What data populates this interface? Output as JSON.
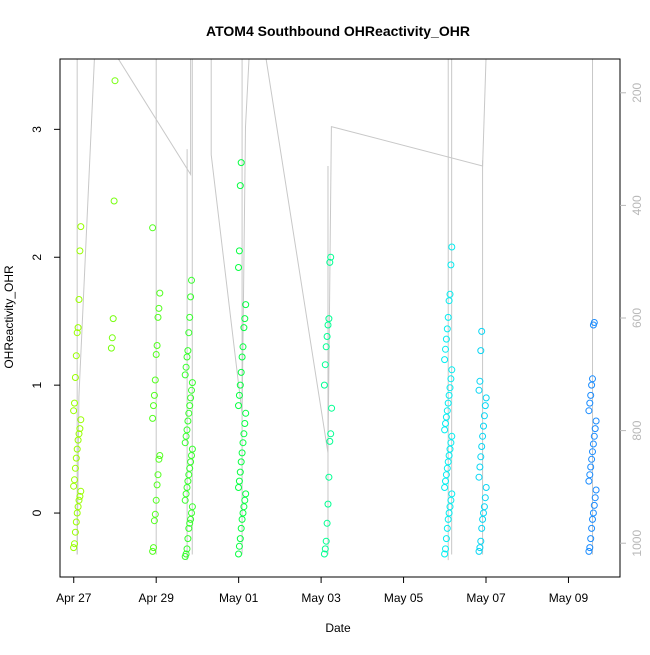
{
  "chart_data": {
    "type": "scatter",
    "title": "ATOM4 Southbound OHReactivity_OHR",
    "xlabel": "Date",
    "ylabel": "OHReactivity_OHR",
    "x_tick_labels": [
      "Apr 27",
      "Apr 29",
      "May 01",
      "May 03",
      "May 05",
      "May 07",
      "May 09"
    ],
    "x_tick_dates": [
      "2018-04-27",
      "2018-04-29",
      "2018-05-01",
      "2018-05-03",
      "2018-05-05",
      "2018-05-07",
      "2018-05-09"
    ],
    "xlim": [
      "2018-04-26T16:00",
      "2018-05-10T06:00"
    ],
    "ylim": [
      -0.5,
      3.55
    ],
    "y_ticks": [
      0,
      1,
      2,
      3
    ],
    "y2_ticks": [
      200,
      400,
      600,
      800,
      1000
    ],
    "y2lim": [
      1060,
      140
    ],
    "grid": false,
    "color_scale": "time: lime green to blue",
    "colors": {
      "points_start": "#99ff00",
      "points_mid": "#00ff44",
      "points_cyan": "#00ffee",
      "points_end": "#1a8cff",
      "line": "#c8c8c8",
      "axis": "#000000",
      "right_axis": "#b8b8b8"
    },
    "clusters": [
      {
        "date": "2018-04-27T02:00",
        "values": [
          -0.27,
          -0.24,
          -0.15,
          -0.07,
          0.0,
          0.05,
          0.1,
          0.13,
          0.17,
          0.21,
          0.26,
          0.35,
          0.43,
          0.5,
          0.57,
          0.62,
          0.66,
          0.73,
          0.8,
          0.86,
          1.06,
          1.23,
          1.41,
          1.45,
          1.67,
          2.05,
          2.24
        ]
      },
      {
        "date": "2018-04-28T00:00",
        "values": [
          1.29,
          1.37,
          1.52,
          2.44,
          3.38
        ]
      },
      {
        "date": "2018-04-29T00:00",
        "values": [
          -0.3,
          -0.27,
          -0.06,
          -0.01,
          0.1,
          0.22,
          0.3,
          0.42,
          0.45,
          0.74,
          0.84,
          0.92,
          1.04,
          1.24,
          1.31,
          1.53,
          1.6,
          1.72,
          2.23
        ]
      },
      {
        "date": "2018-04-29T19:00",
        "values": [
          -0.34,
          -0.32,
          -0.28,
          -0.2,
          -0.12,
          -0.08,
          -0.05,
          0.0,
          0.05,
          0.1,
          0.15,
          0.2,
          0.25,
          0.3,
          0.35,
          0.4,
          0.45,
          0.5,
          0.55,
          0.6,
          0.65,
          0.72,
          0.78,
          0.84,
          0.9,
          0.96,
          1.02,
          1.08,
          1.14,
          1.22,
          1.27,
          1.41,
          1.53,
          1.69,
          1.82
        ]
      },
      {
        "date": "2018-05-01T02:00",
        "values": [
          -0.32,
          -0.26,
          -0.2,
          -0.12,
          -0.05,
          0.0,
          0.05,
          0.1,
          0.15,
          0.2,
          0.25,
          0.32,
          0.4,
          0.47,
          0.55,
          0.62,
          0.7,
          0.78,
          0.84,
          0.92,
          1.0,
          1.1,
          1.22,
          1.3,
          1.45,
          1.52,
          1.63,
          1.92,
          2.05,
          2.56,
          2.74
        ]
      },
      {
        "date": "2018-05-03T04:00",
        "values": [
          -0.32,
          -0.28,
          -0.22,
          -0.08,
          0.07,
          0.28,
          0.56,
          0.62,
          0.82,
          1.0,
          1.16,
          1.3,
          1.38,
          1.47,
          1.52,
          1.96,
          2.0
        ]
      },
      {
        "date": "2018-05-06T02:00",
        "values": [
          -0.32,
          -0.28,
          -0.2,
          -0.12,
          -0.05,
          0.0,
          0.05,
          0.1,
          0.15,
          0.2,
          0.25,
          0.3,
          0.35,
          0.4,
          0.45,
          0.5,
          0.55,
          0.6,
          0.65,
          0.7,
          0.75,
          0.8,
          0.86,
          0.92,
          0.98,
          1.05,
          1.12,
          1.2,
          1.28,
          1.36,
          1.44,
          1.53,
          1.66,
          1.71,
          1.94,
          2.08
        ]
      },
      {
        "date": "2018-05-06T22:00",
        "values": [
          -0.3,
          -0.27,
          -0.22,
          -0.12,
          -0.05,
          0.0,
          0.05,
          0.12,
          0.2,
          0.28,
          0.36,
          0.44,
          0.52,
          0.6,
          0.68,
          0.76,
          0.84,
          0.9,
          0.96,
          1.03,
          1.27,
          1.42
        ]
      },
      {
        "date": "2018-05-09T14:00",
        "values": [
          -0.3,
          -0.27,
          -0.2,
          -0.12,
          -0.05,
          0.0,
          0.06,
          0.12,
          0.18,
          0.25,
          0.3,
          0.36,
          0.42,
          0.48,
          0.54,
          0.6,
          0.66,
          0.72,
          0.8,
          0.86,
          0.92,
          1.0,
          1.05,
          1.47,
          1.49
        ]
      }
    ],
    "line_series": {
      "axis": "y2",
      "description": "secondary series, plotted against right axis",
      "points": [
        [
          "2018-04-27T02:00",
          1020
        ],
        [
          "2018-04-27T03:00",
          740
        ],
        [
          "2018-04-27T12:00",
          140
        ],
        [
          "2018-04-28T00:00",
          140
        ],
        [
          "2018-04-28T02:00",
          140
        ],
        [
          "2018-04-29T20:00",
          345
        ],
        [
          "2018-04-29T20:00",
          140
        ],
        [
          "2018-04-30T08:00",
          140
        ],
        [
          "2018-04-30T08:00",
          310
        ],
        [
          "2018-05-01T02:00",
          770
        ],
        [
          "2018-05-01T04:00",
          260
        ],
        [
          "2018-05-01T06:00",
          140
        ],
        [
          "2018-05-01T16:00",
          140
        ],
        [
          "2018-05-03T04:00",
          840
        ],
        [
          "2018-05-03T06:00",
          260
        ],
        [
          "2018-05-06T22:00",
          330
        ],
        [
          "2018-05-07T00:00",
          140
        ],
        [
          "2018-05-09T14:00",
          140
        ]
      ],
      "spikes": [
        {
          "date": "2018-04-27T02:00",
          "top": 140,
          "bottom": 1020
        },
        {
          "date": "2018-04-29T00:00",
          "top": 140,
          "bottom": 1020
        },
        {
          "date": "2018-04-29T18:00",
          "top": 300,
          "bottom": 1030
        },
        {
          "date": "2018-04-29T21:00",
          "top": 140,
          "bottom": 1020
        },
        {
          "date": "2018-05-01T02:00",
          "top": 140,
          "bottom": 1020
        },
        {
          "date": "2018-05-03T04:00",
          "top": 330,
          "bottom": 1020
        },
        {
          "date": "2018-05-06T02:00",
          "top": 140,
          "bottom": 1030
        },
        {
          "date": "2018-05-06T04:00",
          "top": 140,
          "bottom": 1020
        },
        {
          "date": "2018-05-06T22:00",
          "top": 320,
          "bottom": 1020
        },
        {
          "date": "2018-05-09T14:00",
          "top": 140,
          "bottom": 1020
        }
      ]
    }
  }
}
